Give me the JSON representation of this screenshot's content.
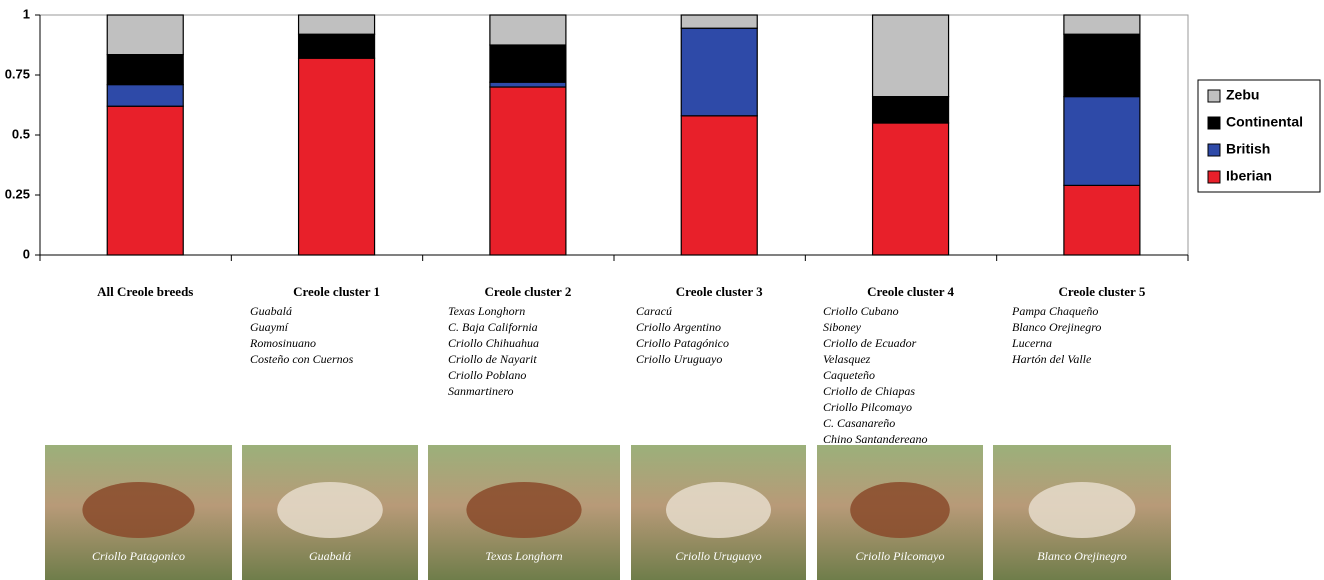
{
  "chart_data": {
    "type": "bar",
    "stacked": true,
    "categories": [
      "All Creole breeds",
      "Creole cluster 1",
      "Creole cluster 2",
      "Creole cluster 3",
      "Creole cluster 4",
      "Creole cluster 5"
    ],
    "series": [
      {
        "name": "Iberian",
        "color": "#e8202a",
        "values": [
          0.62,
          0.82,
          0.7,
          0.58,
          0.55,
          0.29
        ]
      },
      {
        "name": "British",
        "color": "#2e4aa8",
        "values": [
          0.09,
          0,
          0.02,
          0.365,
          0,
          0.37
        ]
      },
      {
        "name": "Continental",
        "color": "#000000",
        "values": [
          0.125,
          0.1,
          0.155,
          0,
          0.11,
          0.26
        ]
      },
      {
        "name": "Zebu",
        "color": "#c0c0c0",
        "values": [
          0.165,
          0.08,
          0.125,
          0.055,
          0.34,
          0.08
        ]
      }
    ],
    "ylim": [
      0,
      1
    ],
    "yticks": [
      0,
      0.25,
      0.5,
      0.75,
      1
    ],
    "grid": false,
    "legend": "right"
  },
  "breed_lists": [
    [],
    [
      "Guabalá",
      "Guaymí",
      "Romosinuano",
      "Costeño con Cuernos"
    ],
    [
      "Texas Longhorn",
      "C. Baja California",
      "Criollo Chihuahua",
      "Criollo de Nayarit",
      "Criollo Poblano",
      "Sanmartinero"
    ],
    [
      "Caracú",
      "Criollo Argentino",
      "Criollo Patagónico",
      "Criollo Uruguayo"
    ],
    [
      "Criollo Cubano",
      "Siboney",
      "Criollo de Ecuador",
      "Velasquez",
      "Caqueteño",
      "Criollo de Chiapas",
      "Criollo Pilcomayo",
      "C. Casanareño",
      "Chino Santandereano"
    ],
    [
      "Pampa Chaqueño",
      "Blanco Orejinegro",
      "Lucerna",
      "Hartón del Valle"
    ]
  ],
  "photos": [
    "Criollo Patagonico",
    "Guabalá",
    "Texas Longhorn",
    "Criollo Uruguayo",
    "Criollo Pilcomayo",
    "Blanco Orejinegro"
  ]
}
